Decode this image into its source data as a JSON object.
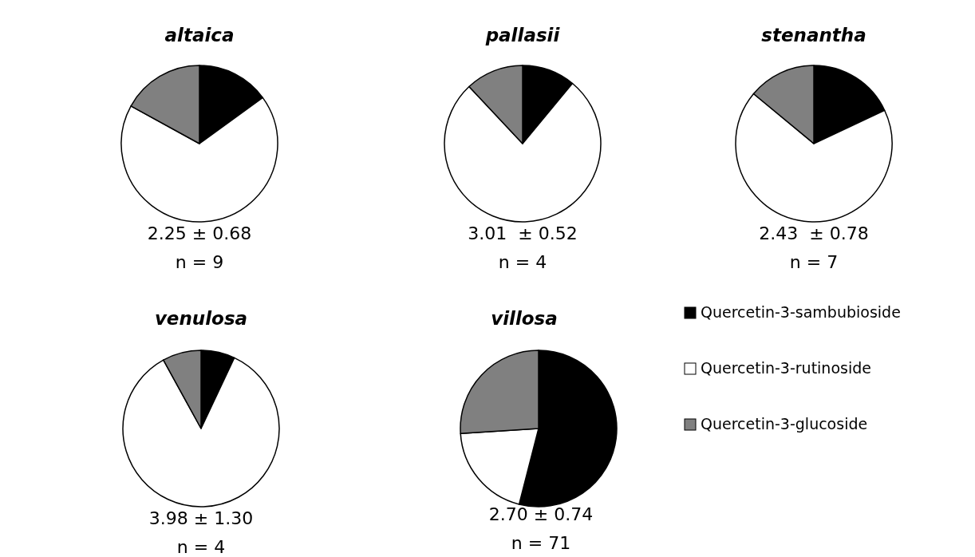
{
  "chart_data": [
    {
      "type": "pie",
      "title": "altaica",
      "categories": [
        "Quercetin-3-sambubioside",
        "Quercetin-3-rutinoside",
        "Quercetin-3-glucoside"
      ],
      "values": [
        15,
        68,
        17
      ],
      "colors": [
        "#000000",
        "#ffffff",
        "#808080"
      ],
      "annotations": [
        "2.25 ± 0.68",
        "n = 9"
      ],
      "legend": "right"
    },
    {
      "type": "pie",
      "title": "pallasii",
      "categories": [
        null,
        null,
        null
      ],
      "values": [
        11,
        77,
        12
      ],
      "colors": [
        "#000000",
        "#ffffff",
        "#808080"
      ],
      "annotations": [
        "3.01  ± 0.52",
        "n = 4"
      ]
    },
    {
      "type": "pie",
      "title": "stenantha",
      "categories": [
        null,
        null,
        null
      ],
      "values": [
        18,
        68,
        14
      ],
      "colors": [
        "#000000",
        "#ffffff",
        "#808080"
      ],
      "annotations": [
        "2.43  ± 0.78",
        "n = 7"
      ]
    },
    {
      "type": "pie",
      "title": "venulosa",
      "categories": [
        null,
        null,
        null
      ],
      "values": [
        7,
        85,
        8
      ],
      "colors": [
        "#000000",
        "#ffffff",
        "#808080"
      ],
      "annotations": [
        "3.98 ± 1.30",
        "n = 4"
      ]
    },
    {
      "type": "pie",
      "title": "villosa",
      "categories": [
        null,
        null,
        null
      ],
      "values": [
        54,
        20,
        26
      ],
      "colors": [
        "#000000",
        "#ffffff",
        "#808080"
      ],
      "annotations": [
        "2.70 ± 0.74",
        "n = 71"
      ]
    }
  ]
}
